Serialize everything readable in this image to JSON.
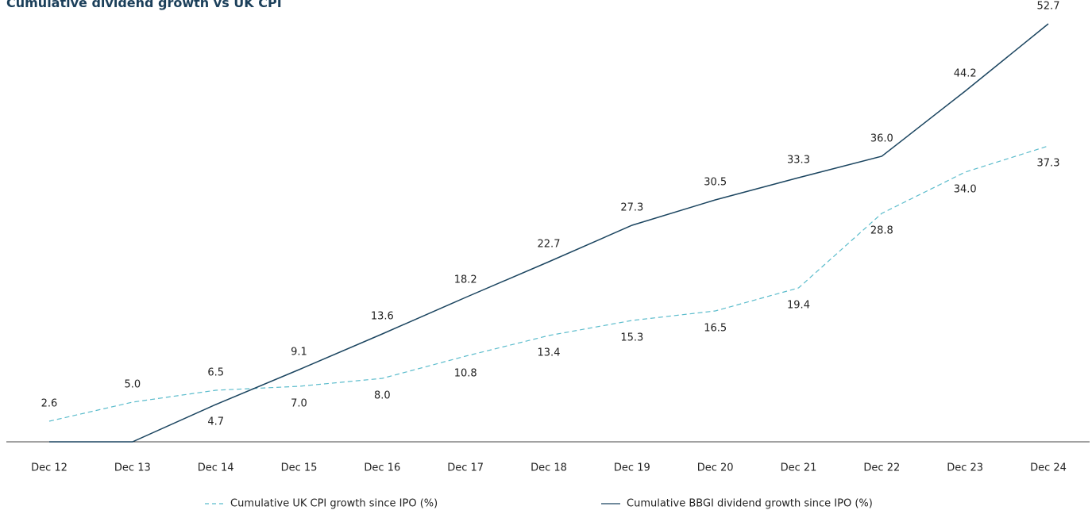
{
  "chart_data": {
    "type": "line",
    "title": "Cumulative dividend growth vs UK CPI",
    "categories": [
      "Dec 12",
      "Dec 13",
      "Dec 14",
      "Dec 15",
      "Dec 16",
      "Dec 17",
      "Dec 18",
      "Dec 19",
      "Dec 20",
      "Dec 21",
      "Dec 22",
      "Dec 23",
      "Dec 24"
    ],
    "ylim": [
      0,
      55
    ],
    "series": [
      {
        "name": "Cumulative UK CPI growth since IPO (%)",
        "color": "#5bbccc",
        "dashed": true,
        "values": [
          2.6,
          5.0,
          6.5,
          7.0,
          8.0,
          10.8,
          13.4,
          15.3,
          16.5,
          19.4,
          28.8,
          34.0,
          37.3
        ],
        "value_labels": [
          "2.6",
          "5.0",
          "6.5",
          "7.0",
          "8.0",
          "10.8",
          "13.4",
          "15.3",
          "16.5",
          "19.4",
          "28.8",
          "34.0",
          "37.3"
        ]
      },
      {
        "name": "Cumulative BBGI dividend growth since IPO (%)",
        "color": "#1b4560",
        "dashed": false,
        "values": [
          0,
          0,
          4.7,
          9.1,
          13.6,
          18.2,
          22.7,
          27.3,
          30.5,
          33.3,
          36.0,
          44.2,
          52.7
        ],
        "value_labels": [
          null,
          null,
          "4.7",
          "9.1",
          "13.6",
          "18.2",
          "22.7",
          "27.3",
          "30.5",
          "33.3",
          "36.0",
          "44.2",
          "52.7"
        ]
      }
    ]
  }
}
